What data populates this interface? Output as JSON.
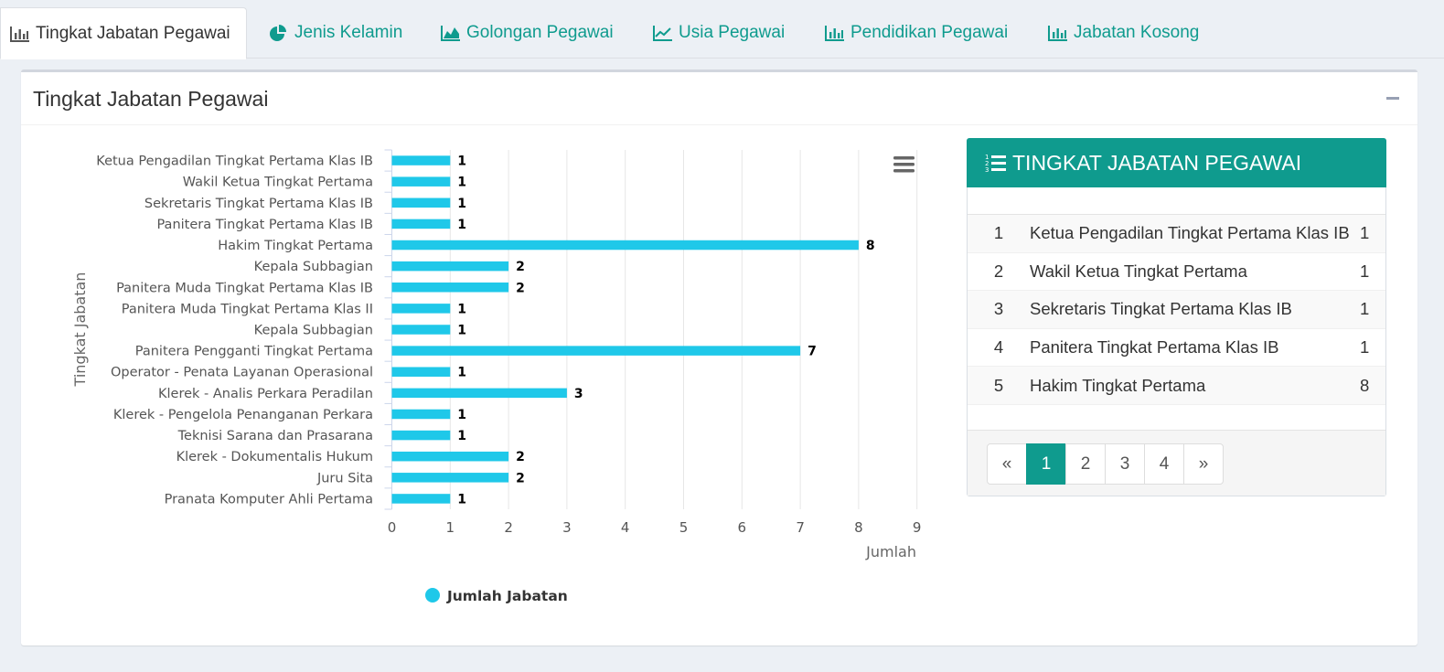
{
  "tabs": [
    {
      "label": "Tingkat Jabatan Pegawai",
      "icon": "bar-chart-icon",
      "active": true
    },
    {
      "label": "Jenis Kelamin",
      "icon": "pie-chart-icon",
      "active": false
    },
    {
      "label": "Golongan Pegawai",
      "icon": "area-chart-icon",
      "active": false
    },
    {
      "label": "Usia Pegawai",
      "icon": "line-chart-icon",
      "active": false
    },
    {
      "label": "Pendidikan Pegawai",
      "icon": "bar-chart-icon",
      "active": false
    },
    {
      "label": "Jabatan Kosong",
      "icon": "bar-chart-icon",
      "active": false
    }
  ],
  "box": {
    "title": "Tingkat Jabatan Pegawai",
    "collapse_icon": "minus-icon"
  },
  "chart_menu_icon": "hamburger-menu-icon",
  "colors": {
    "accent": "#0f9b8e",
    "bar": "#1fc8e9"
  },
  "chart_data": {
    "type": "bar",
    "orientation": "horizontal",
    "categories": [
      "Ketua Pengadilan Tingkat Pertama Klas IB",
      "Wakil Ketua Tingkat Pertama",
      "Sekretaris Tingkat Pertama Klas IB",
      "Panitera Tingkat Pertama Klas IB",
      "Hakim Tingkat Pertama",
      "Kepala Subbagian",
      "Panitera Muda Tingkat Pertama Klas IB",
      "Panitera Muda Tingkat Pertama Klas II",
      "Kepala Subbagian",
      "Panitera Pengganti Tingkat Pertama",
      "Operator - Penata Layanan Operasional",
      "Klerek - Analis Perkara Peradilan",
      "Klerek - Pengelola Penanganan Perkara",
      "Teknisi Sarana dan Prasarana",
      "Klerek - Dokumentalis Hukum",
      "Juru Sita",
      "Pranata Komputer Ahli Pertama"
    ],
    "series": [
      {
        "name": "Jumlah Jabatan",
        "values": [
          1,
          1,
          1,
          1,
          8,
          2,
          2,
          1,
          1,
          7,
          1,
          3,
          1,
          1,
          2,
          2,
          1
        ]
      }
    ],
    "xlabel": "Jumlah",
    "ylabel": "Tingkat Jabatan",
    "xlim": [
      0,
      9
    ],
    "xticks": [
      "0",
      "1",
      "2",
      "3",
      "4",
      "5",
      "6",
      "7",
      "8",
      "9"
    ],
    "grid": true,
    "legend": "bottom",
    "data_labels": true
  },
  "panel": {
    "title": "TINGKAT JABATAN PEGAWAI",
    "icon": "list-ol-icon",
    "rows": [
      {
        "num": "1",
        "name": "Ketua Pengadilan Tingkat Pertama Klas IB",
        "val": "1"
      },
      {
        "num": "2",
        "name": "Wakil Ketua Tingkat Pertama",
        "val": "1"
      },
      {
        "num": "3",
        "name": "Sekretaris Tingkat Pertama Klas IB",
        "val": "1"
      },
      {
        "num": "4",
        "name": "Panitera Tingkat Pertama Klas IB",
        "val": "1"
      },
      {
        "num": "5",
        "name": "Hakim Tingkat Pertama",
        "val": "8"
      }
    ],
    "pager": {
      "prev": "«",
      "pages": [
        "1",
        "2",
        "3",
        "4"
      ],
      "current": "1",
      "next": "»"
    }
  }
}
